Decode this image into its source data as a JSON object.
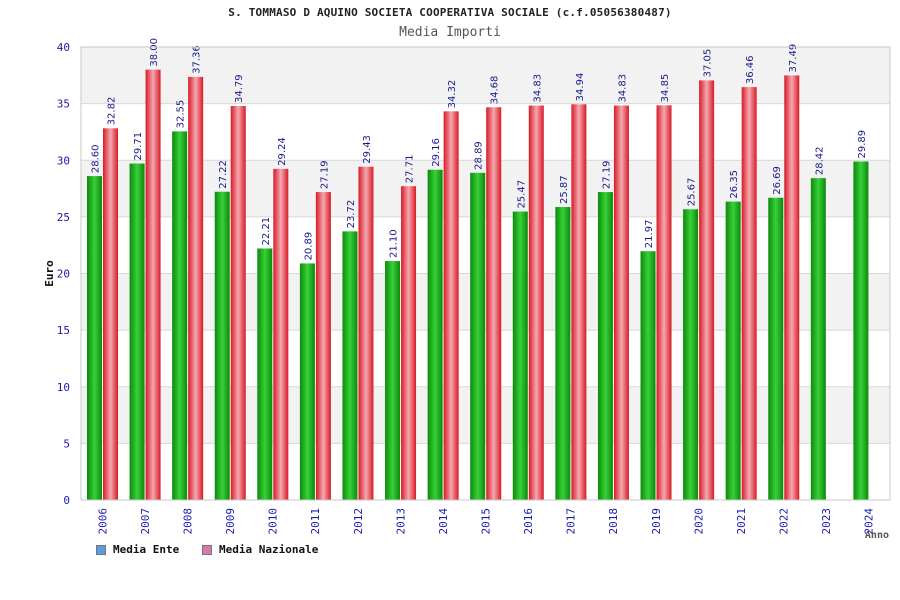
{
  "title": "S. TOMMASO D AQUINO SOCIETA COOPERATIVA SOCIALE (c.f.05056380487)",
  "subtitle": "Media Importi",
  "colors": {
    "ente": "#0a9a0a",
    "ente_light": "#3fd03f",
    "nazionale": "#e0202c",
    "nazionale_light": "#f0a0a8",
    "legend_ente": "#5b9be0",
    "legend_nazionale": "#d878b0",
    "axis_text": "#1a1ab0",
    "band": "#f2f2f2"
  },
  "legend": {
    "ente": "Media Ente",
    "nazionale": "Media Nazionale"
  },
  "chart_data": {
    "type": "bar",
    "title": "Media Importi",
    "xlabel": "Anno",
    "ylabel": "Euro",
    "ylim": [
      0,
      40
    ],
    "yticks": [
      0,
      5,
      10,
      15,
      20,
      25,
      30,
      35,
      40
    ],
    "categories": [
      "2006",
      "2007",
      "2008",
      "2009",
      "2010",
      "2011",
      "2012",
      "2013",
      "2014",
      "2015",
      "2016",
      "2017",
      "2018",
      "2019",
      "2020",
      "2021",
      "2022",
      "2023",
      "2024"
    ],
    "series": [
      {
        "name": "Media Ente",
        "values": [
          28.6,
          29.71,
          32.55,
          27.22,
          22.21,
          20.89,
          23.72,
          21.1,
          29.16,
          28.89,
          25.47,
          25.87,
          27.19,
          21.97,
          25.67,
          26.35,
          26.69,
          28.42,
          29.89
        ],
        "labels": [
          "28.60",
          "29.71",
          "32.55",
          "27.22",
          "22.21",
          "20.89",
          "23.72",
          "21.10",
          "29.16",
          "28.89",
          "25.47",
          "25.87",
          "27.19",
          "21.97",
          "25.67",
          "26.35",
          "26.69",
          "28.42",
          "29.89"
        ]
      },
      {
        "name": "Media Nazionale",
        "values": [
          32.82,
          38.0,
          37.36,
          34.79,
          29.24,
          27.19,
          29.43,
          27.71,
          34.32,
          34.68,
          34.83,
          34.94,
          34.83,
          34.85,
          37.05,
          36.46,
          37.49,
          null,
          null
        ],
        "labels": [
          "32.82",
          "38.00",
          "37.36",
          "34.79",
          "29.24",
          "27.19",
          "29.43",
          "27.71",
          "34.32",
          "34.68",
          "34.83",
          "34.94",
          "34.83",
          "34.85",
          "37.05",
          "36.46",
          "37.49",
          null,
          null
        ]
      }
    ]
  }
}
